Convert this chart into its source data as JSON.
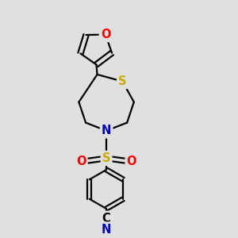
{
  "bg_color": "#e0e0e0",
  "bond_color": "#000000",
  "atom_colors": {
    "O": "#ff0000",
    "N": "#0000cc",
    "S_ring": "#ccaa00",
    "S_sulfonyl": "#ccaa00",
    "C": "#000000"
  },
  "line_width": 1.6,
  "font_size_atoms": 10.5
}
